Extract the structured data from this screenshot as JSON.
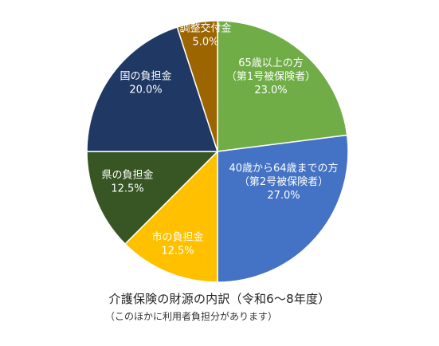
{
  "chart_data": {
    "type": "pie",
    "title": "介護保険の財源の内訳（令和6～8年度）",
    "subtitle": "（このほかに利用者負担分があります）",
    "slices": [
      {
        "label_lines": [
          "65歳以上の方",
          "（第1号被保険者）"
        ],
        "value": 23.0,
        "value_text": "23.0%",
        "color": "#70ad47"
      },
      {
        "label_lines": [
          "40歳から64歳までの方",
          "（第2号被保険者）"
        ],
        "value": 27.0,
        "value_text": "27.0%",
        "color": "#4472c4"
      },
      {
        "label_lines": [
          "市の負担金"
        ],
        "value": 12.5,
        "value_text": "12.5%",
        "color": "#ffc000"
      },
      {
        "label_lines": [
          "県の負担金"
        ],
        "value": 12.5,
        "value_text": "12.5%",
        "color": "#375623"
      },
      {
        "label_lines": [
          "国の負担金"
        ],
        "value": 20.0,
        "value_text": "20.0%",
        "color": "#203864"
      },
      {
        "label_lines": [
          "調整交付金"
        ],
        "value": 5.0,
        "value_text": "5.0%",
        "color": "#9c6500"
      }
    ]
  }
}
